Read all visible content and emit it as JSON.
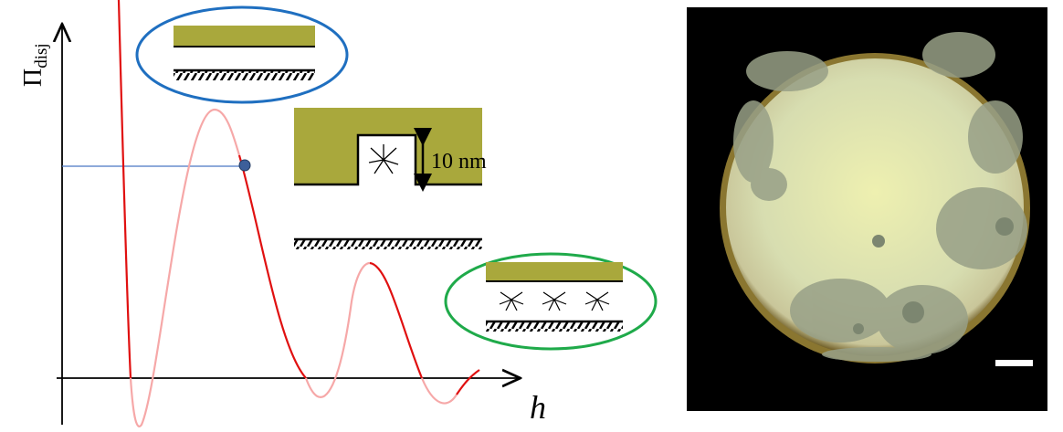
{
  "axis": {
    "y_label": "Π",
    "y_label_sub": "disj",
    "x_label": "h"
  },
  "inset": {
    "scale_label": "10 nm"
  }
}
